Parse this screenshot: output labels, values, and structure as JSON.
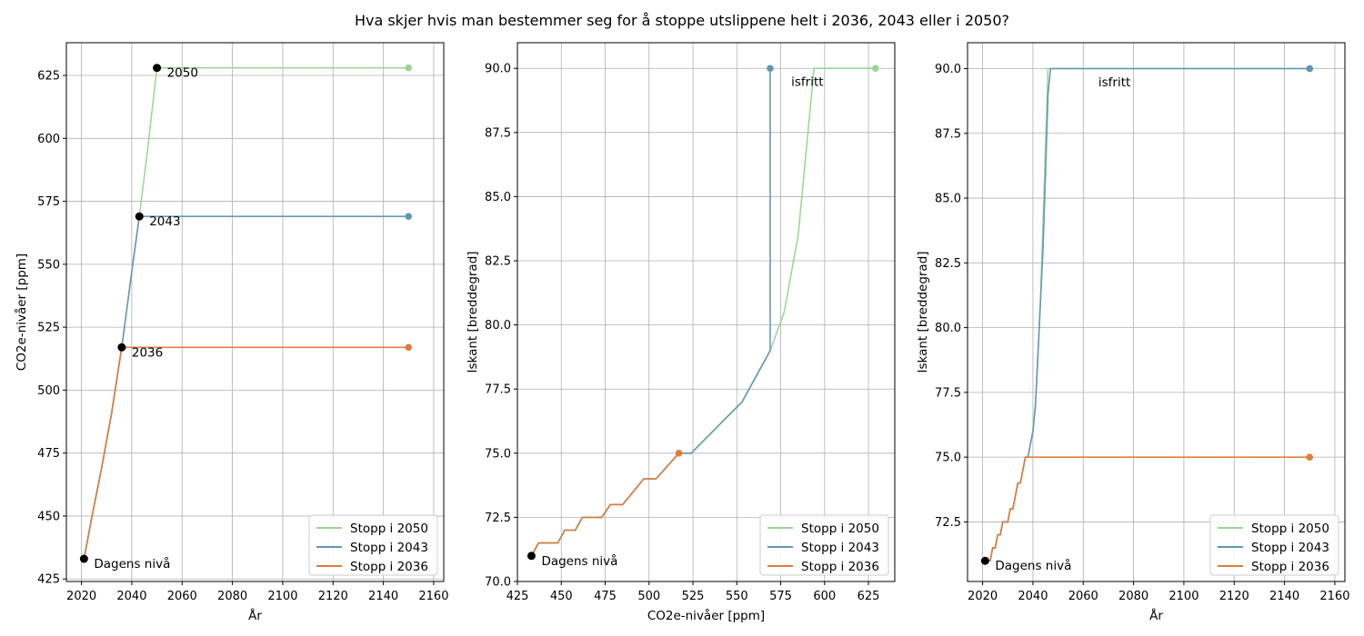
{
  "suptitle": "Hva skjer hvis man bestemmer seg for å stoppe utslippene helt i 2036, 2043 eller i 2050?",
  "colors": {
    "s2050": "#98d594",
    "s2043": "#6096b4",
    "s2036": "#e07b39",
    "overlap": "#9e6c46",
    "marker": "#000000",
    "grid": "#b0b0b0"
  },
  "chart_data": [
    {
      "type": "line",
      "xlabel": "År",
      "ylabel": "CO2e-nivåer [ppm]",
      "xlim": [
        2014,
        2164
      ],
      "ylim": [
        424,
        638
      ],
      "xticks": [
        2020,
        2040,
        2060,
        2080,
        2100,
        2120,
        2140,
        2160
      ],
      "yticks": [
        425,
        450,
        475,
        500,
        525,
        550,
        575,
        600,
        625
      ],
      "legend_position": "lower-right",
      "series": [
        {
          "name": "Stopp i 2050",
          "color_key": "s2050",
          "x": [
            2021,
            2024,
            2028,
            2032,
            2036,
            2040,
            2043,
            2046,
            2050,
            2150
          ],
          "y": [
            433,
            449,
            469,
            491,
            517,
            547,
            569,
            593,
            628,
            628
          ]
        },
        {
          "name": "Stopp i 2043",
          "color_key": "s2043",
          "x": [
            2021,
            2024,
            2028,
            2032,
            2036,
            2040,
            2043,
            2150
          ],
          "y": [
            433,
            449,
            469,
            491,
            517,
            547,
            569,
            569
          ]
        },
        {
          "name": "Stopp i 2036",
          "color_key": "s2036",
          "x": [
            2021,
            2024,
            2028,
            2032,
            2036,
            2150
          ],
          "y": [
            433,
            449,
            469,
            491,
            517,
            517
          ]
        }
      ],
      "points": [
        {
          "x": 2021,
          "y": 433,
          "label": "Dagens nivå"
        },
        {
          "x": 2036,
          "y": 517,
          "label": "2036"
        },
        {
          "x": 2043,
          "y": 569,
          "label": "2043"
        },
        {
          "x": 2050,
          "y": 628,
          "label": "2050"
        }
      ],
      "annotations": []
    },
    {
      "type": "line",
      "xlabel": "CO2e-nivåer [ppm]",
      "ylabel": "Iskant [breddegrad]",
      "xlim": [
        425,
        640
      ],
      "ylim": [
        70.0,
        91.0
      ],
      "xticks": [
        425,
        450,
        475,
        500,
        525,
        550,
        575,
        600,
        625
      ],
      "yticks": [
        70.0,
        72.5,
        75.0,
        77.5,
        80.0,
        82.5,
        85.0,
        87.5,
        90.0
      ],
      "legend_position": "lower-right",
      "series": [
        {
          "name": "Stopp i 2050",
          "color_key": "s2050",
          "x": [
            433,
            437,
            440,
            448,
            452,
            458,
            462,
            473,
            478,
            485,
            497,
            504,
            517,
            521,
            524,
            553,
            569,
            577,
            585,
            594,
            629
          ],
          "y": [
            71.0,
            71.5,
            71.5,
            71.5,
            72.0,
            72.0,
            72.5,
            72.5,
            73.0,
            73.0,
            74.0,
            74.0,
            75.0,
            75.0,
            75.0,
            77.0,
            79.0,
            80.5,
            83.5,
            90.0,
            90.0
          ]
        },
        {
          "name": "Stopp i 2043",
          "color_key": "s2043",
          "x": [
            433,
            437,
            440,
            448,
            452,
            458,
            462,
            473,
            478,
            485,
            497,
            504,
            517,
            521,
            524,
            553,
            569,
            569,
            569
          ],
          "y": [
            71.0,
            71.5,
            71.5,
            71.5,
            72.0,
            72.0,
            72.5,
            72.5,
            73.0,
            73.0,
            74.0,
            74.0,
            75.0,
            75.0,
            75.0,
            77.0,
            79.0,
            85.0,
            90.0
          ]
        },
        {
          "name": "Stopp i 2036",
          "color_key": "s2036",
          "x": [
            433,
            437,
            440,
            448,
            452,
            458,
            462,
            473,
            478,
            485,
            497,
            504,
            517,
            517
          ],
          "y": [
            71.0,
            71.5,
            71.5,
            71.5,
            72.0,
            72.0,
            72.5,
            72.5,
            73.0,
            73.0,
            74.0,
            74.0,
            75.0,
            75.0
          ]
        }
      ],
      "points": [
        {
          "x": 433,
          "y": 71.0,
          "label": "Dagens nivå"
        }
      ],
      "annotations": [
        {
          "x": 581,
          "y": 89.5,
          "text": "isfritt"
        }
      ]
    },
    {
      "type": "line",
      "xlabel": "År",
      "ylabel": "Iskant [breddegrad]",
      "xlim": [
        2014,
        2164
      ],
      "ylim": [
        70.2,
        91.0
      ],
      "xticks": [
        2020,
        2040,
        2060,
        2080,
        2100,
        2120,
        2140,
        2160
      ],
      "yticks": [
        72.5,
        75.0,
        77.5,
        80.0,
        82.5,
        85.0,
        87.5,
        90.0
      ],
      "legend_position": "lower-right",
      "series": [
        {
          "name": "Stopp i 2050",
          "color_key": "s2050",
          "x": [
            2021,
            2023,
            2024,
            2025,
            2026,
            2027,
            2028,
            2029,
            2030,
            2031,
            2032,
            2033,
            2034,
            2035,
            2036,
            2037,
            2038,
            2040,
            2041,
            2042,
            2043,
            2044,
            2045,
            2046,
            2150
          ],
          "y": [
            71.0,
            71.0,
            71.5,
            71.5,
            72.0,
            72.0,
            72.5,
            72.5,
            72.5,
            73.0,
            73.0,
            73.5,
            74.0,
            74.0,
            74.5,
            75.0,
            75.0,
            76.0,
            77.0,
            79.0,
            81.0,
            84.0,
            87.0,
            90.0,
            90.0
          ]
        },
        {
          "name": "Stopp i 2043",
          "color_key": "s2043",
          "x": [
            2021,
            2023,
            2024,
            2025,
            2026,
            2027,
            2028,
            2029,
            2030,
            2031,
            2032,
            2033,
            2034,
            2035,
            2036,
            2037,
            2038,
            2040,
            2041,
            2042,
            2043,
            2044,
            2045,
            2046,
            2047,
            2150
          ],
          "y": [
            71.0,
            71.0,
            71.5,
            71.5,
            72.0,
            72.0,
            72.5,
            72.5,
            72.5,
            73.0,
            73.0,
            73.5,
            74.0,
            74.0,
            74.5,
            75.0,
            75.0,
            76.0,
            77.0,
            79.0,
            81.0,
            83.0,
            86.0,
            89.0,
            90.0,
            90.0
          ]
        },
        {
          "name": "Stopp i 2036",
          "color_key": "s2036",
          "x": [
            2021,
            2023,
            2024,
            2025,
            2026,
            2027,
            2028,
            2029,
            2030,
            2031,
            2032,
            2033,
            2034,
            2035,
            2036,
            2037,
            2150
          ],
          "y": [
            71.0,
            71.0,
            71.5,
            71.5,
            72.0,
            72.0,
            72.5,
            72.5,
            72.5,
            73.0,
            73.0,
            73.5,
            74.0,
            74.0,
            74.5,
            75.0,
            75.0
          ]
        }
      ],
      "points": [
        {
          "x": 2021,
          "y": 71.0,
          "label": "Dagens nivå"
        }
      ],
      "annotations": [
        {
          "x": 2066,
          "y": 89.5,
          "text": "isfritt"
        }
      ]
    }
  ]
}
